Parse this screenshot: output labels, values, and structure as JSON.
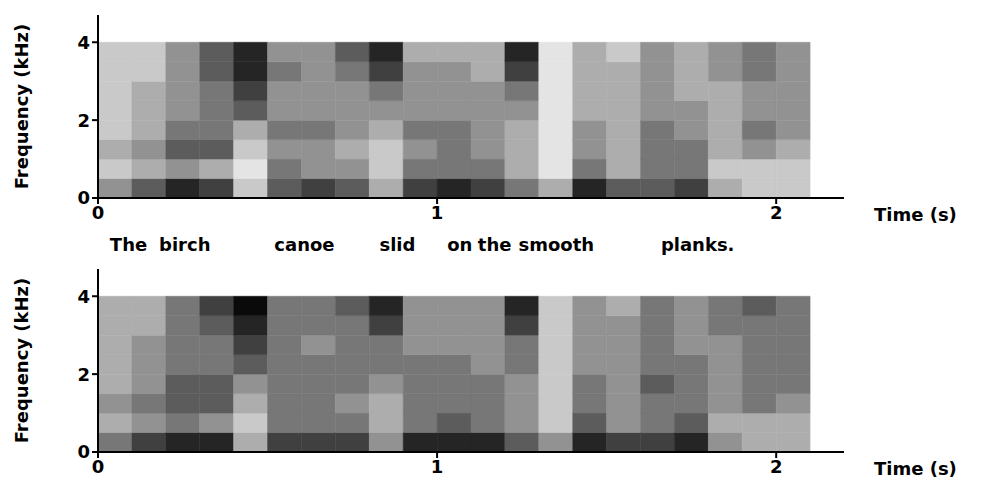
{
  "chart_data": [
    {
      "type": "heatmap",
      "xlabel": "Time (s)",
      "ylabel": "Frequency (kHz)",
      "xlim": [
        0,
        2.2
      ],
      "xticks": [
        0,
        1,
        2
      ],
      "ylim": [
        0,
        4.7
      ],
      "yticks": [
        0,
        2,
        4
      ],
      "x_bins": [
        0,
        0.1,
        0.2,
        0.3,
        0.4,
        0.5,
        0.6,
        0.7,
        0.8,
        0.9,
        1.0,
        1.1,
        1.2,
        1.3,
        1.4,
        1.5,
        1.6,
        1.7,
        1.8,
        1.9,
        2.0,
        2.1
      ],
      "y_bins": [
        0,
        0.5,
        1,
        1.5,
        2,
        2.5,
        3,
        3.5,
        4
      ],
      "cells": [
        [
          4,
          2,
          3,
          2,
          2,
          2,
          2,
          2
        ],
        [
          6,
          3,
          4,
          3,
          3,
          3,
          2,
          2
        ],
        [
          8,
          4,
          6,
          5,
          4,
          4,
          4,
          4
        ],
        [
          7,
          3,
          6,
          5,
          5,
          5,
          6,
          6
        ],
        [
          2,
          1,
          2,
          3,
          6,
          7,
          8,
          8
        ],
        [
          6,
          5,
          4,
          5,
          4,
          4,
          5,
          4
        ],
        [
          7,
          4,
          4,
          5,
          4,
          4,
          4,
          4
        ],
        [
          6,
          4,
          3,
          4,
          4,
          4,
          5,
          6
        ],
        [
          3,
          2,
          2,
          3,
          4,
          5,
          7,
          8
        ],
        [
          7,
          5,
          4,
          5,
          4,
          4,
          4,
          3
        ],
        [
          8,
          5,
          5,
          5,
          4,
          4,
          4,
          3
        ],
        [
          7,
          5,
          4,
          4,
          4,
          4,
          3,
          3
        ],
        [
          5,
          3,
          3,
          3,
          4,
          5,
          7,
          8
        ],
        [
          3,
          1,
          1,
          1,
          1,
          1,
          1,
          1
        ],
        [
          8,
          5,
          4,
          4,
          3,
          3,
          3,
          3
        ],
        [
          6,
          3,
          3,
          3,
          3,
          3,
          3,
          2
        ],
        [
          6,
          5,
          5,
          5,
          4,
          4,
          4,
          4
        ],
        [
          7,
          5,
          5,
          4,
          4,
          3,
          3,
          3
        ],
        [
          3,
          2,
          3,
          3,
          3,
          3,
          4,
          4
        ],
        [
          2,
          2,
          4,
          5,
          4,
          4,
          5,
          5
        ],
        [
          2,
          2,
          3,
          4,
          4,
          4,
          4,
          4
        ]
      ],
      "annotations": [
        {
          "text": "The",
          "x": 0.035
        },
        {
          "text": "birch",
          "x": 0.18
        },
        {
          "text": "canoe",
          "x": 0.52
        },
        {
          "text": "slid",
          "x": 0.83
        },
        {
          "text": "on",
          "x": 1.03
        },
        {
          "text": "the",
          "x": 1.12
        },
        {
          "text": "smooth",
          "x": 1.24
        },
        {
          "text": "planks.",
          "x": 1.66
        }
      ]
    },
    {
      "type": "heatmap",
      "xlabel": "Time (s)",
      "ylabel": "Frequency (kHz)",
      "xlim": [
        0,
        2.2
      ],
      "xticks": [
        0,
        1,
        2
      ],
      "ylim": [
        0,
        4.7
      ],
      "yticks": [
        0,
        2,
        4
      ],
      "x_bins": [
        0,
        0.1,
        0.2,
        0.3,
        0.4,
        0.5,
        0.6,
        0.7,
        0.8,
        0.9,
        1.0,
        1.1,
        1.2,
        1.3,
        1.4,
        1.5,
        1.6,
        1.7,
        1.8,
        1.9,
        2.0,
        2.1
      ],
      "y_bins": [
        0,
        0.5,
        1,
        1.5,
        2,
        2.5,
        3,
        3.5,
        4
      ],
      "cells": [
        [
          5,
          3,
          4,
          3,
          3,
          3,
          3,
          3
        ],
        [
          7,
          4,
          5,
          4,
          4,
          4,
          3,
          3
        ],
        [
          8,
          5,
          6,
          6,
          5,
          5,
          5,
          5
        ],
        [
          8,
          4,
          6,
          6,
          5,
          5,
          6,
          7
        ],
        [
          3,
          2,
          3,
          4,
          6,
          7,
          8,
          9
        ],
        [
          7,
          5,
          5,
          5,
          5,
          5,
          5,
          5
        ],
        [
          7,
          5,
          5,
          5,
          5,
          4,
          5,
          5
        ],
        [
          7,
          5,
          4,
          5,
          5,
          5,
          5,
          6
        ],
        [
          4,
          3,
          3,
          4,
          5,
          5,
          7,
          8
        ],
        [
          8,
          5,
          5,
          5,
          5,
          4,
          4,
          4
        ],
        [
          8,
          6,
          5,
          5,
          5,
          4,
          4,
          4
        ],
        [
          8,
          5,
          5,
          5,
          4,
          4,
          4,
          4
        ],
        [
          6,
          4,
          4,
          4,
          5,
          5,
          7,
          8
        ],
        [
          4,
          2,
          2,
          2,
          2,
          2,
          2,
          2
        ],
        [
          8,
          6,
          5,
          5,
          4,
          4,
          4,
          4
        ],
        [
          7,
          4,
          4,
          4,
          4,
          4,
          4,
          3
        ],
        [
          7,
          5,
          5,
          6,
          5,
          5,
          5,
          5
        ],
        [
          8,
          6,
          5,
          5,
          5,
          4,
          4,
          4
        ],
        [
          4,
          3,
          4,
          4,
          4,
          4,
          5,
          5
        ],
        [
          3,
          3,
          5,
          5,
          5,
          5,
          5,
          6
        ],
        [
          3,
          3,
          4,
          5,
          5,
          5,
          5,
          5
        ]
      ]
    }
  ]
}
